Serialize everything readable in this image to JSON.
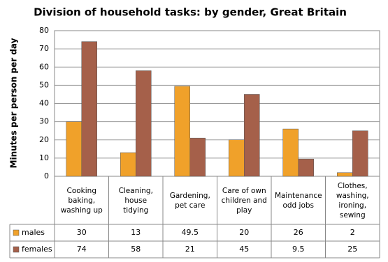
{
  "chart_data": {
    "type": "bar",
    "title": "Division of household tasks: by gender, Great Britain",
    "y_label": "Minutes per person per day",
    "categories": [
      "Cooking baking, washing up",
      "Cleaning, house tidying",
      "Gardening, pet care",
      "Care of own children and play",
      "Maintenance odd jobs",
      "Clothes, washing, ironing, sewing"
    ],
    "series": [
      {
        "name": "males",
        "color": "#f0a12a",
        "values": [
          30,
          13,
          49.5,
          20,
          26,
          2
        ]
      },
      {
        "name": "females",
        "color": "#a5604a",
        "values": [
          74,
          58,
          21,
          45,
          9.5,
          25
        ]
      }
    ],
    "ylim": [
      0,
      80
    ],
    "yticks": [
      0,
      10,
      20,
      30,
      40,
      50,
      60,
      70,
      80
    ],
    "grid": true
  }
}
